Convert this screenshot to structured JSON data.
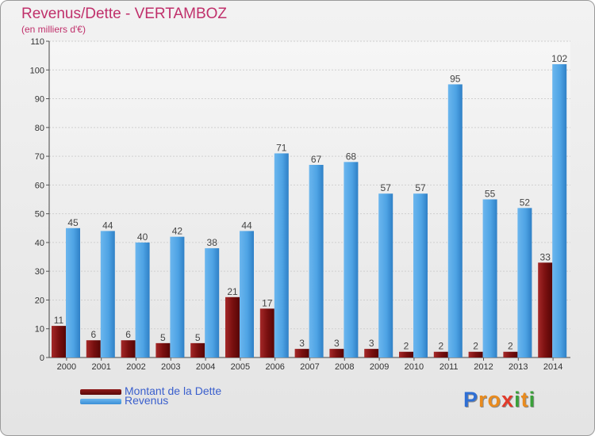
{
  "chart_data": {
    "type": "bar",
    "title": "Revenus/Dette - VERTAMBOZ",
    "subtitle": "(en milliers d'€)",
    "categories": [
      "2000",
      "2001",
      "2002",
      "2003",
      "2004",
      "2005",
      "2006",
      "2007",
      "2008",
      "2009",
      "2010",
      "2011",
      "2012",
      "2013",
      "2014"
    ],
    "series": [
      {
        "name": "Montant de la Dette",
        "color": "#7a1010",
        "values": [
          11,
          6,
          6,
          5,
          5,
          21,
          17,
          3,
          3,
          3,
          2,
          2,
          2,
          2,
          33
        ]
      },
      {
        "name": "Revenus",
        "color": "#4ea3e4",
        "values": [
          45,
          44,
          40,
          42,
          38,
          44,
          71,
          67,
          68,
          57,
          57,
          95,
          55,
          52,
          102
        ]
      }
    ],
    "ylim": [
      0,
      110
    ],
    "yticks": [
      0,
      10,
      20,
      30,
      40,
      50,
      60,
      70,
      80,
      90,
      100,
      110
    ],
    "grid": true,
    "xlabel": "",
    "ylabel": ""
  },
  "logo": {
    "letters": [
      "P",
      "r",
      "o",
      "x",
      "i",
      "t",
      "i"
    ],
    "colors": [
      "#2f6fd4",
      "#e98b1e",
      "#e98b1e",
      "#e23a2a",
      "#3aa13a",
      "#e98b1e",
      "#3aa13a"
    ]
  }
}
